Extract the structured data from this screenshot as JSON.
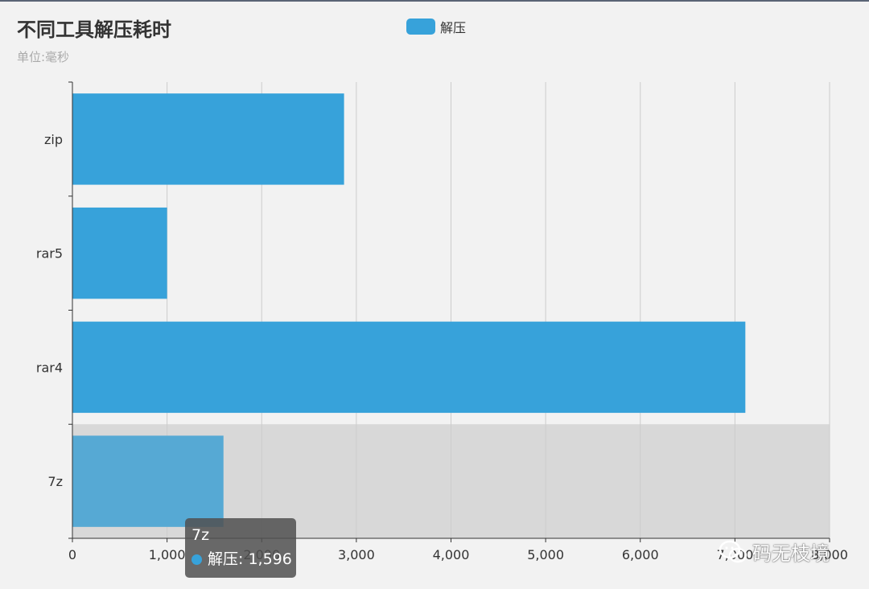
{
  "chart_data": {
    "type": "bar",
    "orientation": "horizontal",
    "title": "不同工具解压耗时",
    "subtitle": "单位:毫秒",
    "categories": [
      "zip",
      "rar5",
      "rar4",
      "7z"
    ],
    "series": [
      {
        "name": "解压",
        "values": [
          2870,
          1000,
          7110,
          1596
        ],
        "color": "#37a2da"
      }
    ],
    "xlim": [
      0,
      8000
    ],
    "xticks": [
      0,
      1000,
      2000,
      3000,
      4000,
      5000,
      6000,
      7000,
      8000
    ],
    "xtick_labels": [
      "0",
      "1,000",
      "2,000",
      "3,000",
      "4,000",
      "5,000",
      "6,000",
      "7,000",
      "8,000"
    ],
    "grid": true,
    "legend_position": "top-center",
    "highlighted_category": "7z"
  },
  "tooltip": {
    "title": "7z",
    "series_label": "解压",
    "value_text": "1,596"
  },
  "watermark": {
    "text": "码无枝境",
    "icon": "wechat-icon"
  },
  "colors": {
    "bar": "#37a2da",
    "bar_highlight": "#56a9d4",
    "shadow": "#d8d8d8",
    "grid": "#cccccc",
    "axis": "#333333"
  }
}
